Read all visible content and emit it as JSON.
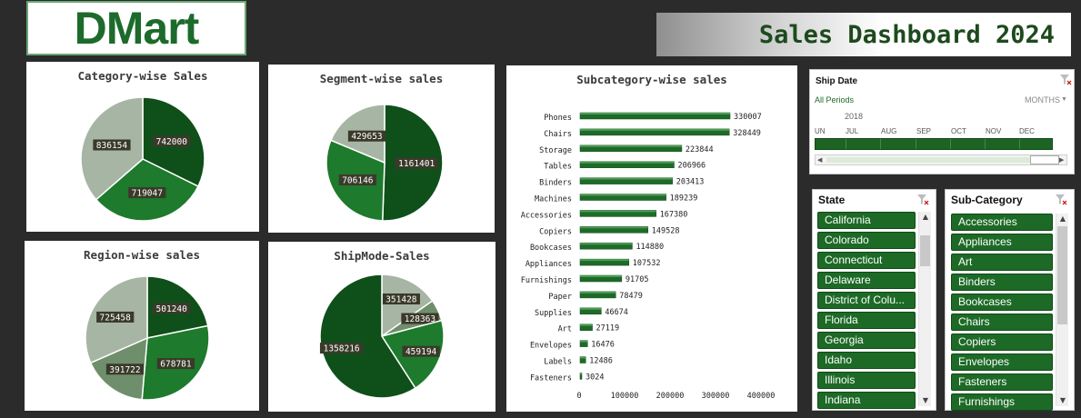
{
  "logo": {
    "text": "DMart"
  },
  "title": "Sales Dashboard 2024",
  "colors": {
    "dark_green": "#0f4f1a",
    "mid_green": "#1e7a2c",
    "light_gray": "#a7b5a4",
    "gray_green": "#6f8f6c",
    "slicer_green": "#1d6a27",
    "timeline_green": "#1c6324"
  },
  "category_chart": {
    "title": "Category-wise Sales",
    "chart_data": {
      "type": "pie",
      "values": [
        742000,
        719047,
        836154
      ]
    }
  },
  "segment_chart": {
    "title": "Segment-wise sales",
    "chart_data": {
      "type": "pie",
      "values": [
        1161401,
        706146,
        429653
      ]
    }
  },
  "region_chart": {
    "title": "Region-wise sales",
    "chart_data": {
      "type": "pie",
      "values": [
        501240,
        678781,
        391722,
        725458
      ]
    }
  },
  "shipmode_chart": {
    "title": "ShipMode-Sales",
    "chart_data": {
      "type": "pie",
      "values": [
        351428,
        128363,
        459194,
        1358216
      ]
    }
  },
  "subcategory_chart": {
    "title": "Subcategory-wise sales",
    "chart_data": {
      "type": "bar",
      "orientation": "horizontal",
      "categories": [
        "Phones",
        "Chairs",
        "Storage",
        "Tables",
        "Binders",
        "Machines",
        "Accessories",
        "Copiers",
        "Bookcases",
        "Appliances",
        "Furnishings",
        "Paper",
        "Supplies",
        "Art",
        "Envelopes",
        "Labels",
        "Fasteners"
      ],
      "values": [
        330007,
        328449,
        223844,
        206966,
        203413,
        189239,
        167380,
        149528,
        114880,
        107532,
        91705,
        78479,
        46674,
        27119,
        16476,
        12486,
        3024
      ],
      "xticks": [
        "0",
        "100000",
        "200000",
        "300000",
        "400000"
      ],
      "xlim": [
        0,
        400000
      ]
    }
  },
  "timeline": {
    "header": "Ship Date",
    "period_label": "All Periods",
    "level_label": "MONTHS",
    "year": "2018",
    "months": [
      "UN",
      "JUL",
      "AUG",
      "SEP",
      "OCT",
      "NOV",
      "DEC"
    ]
  },
  "state_slicer": {
    "header": "State",
    "items": [
      "California",
      "Colorado",
      "Connecticut",
      "Delaware",
      "District of Colu...",
      "Florida",
      "Georgia",
      "Idaho",
      "Illinois",
      "Indiana"
    ]
  },
  "subcategory_slicer": {
    "header": "Sub-Category",
    "items": [
      "Accessories",
      "Appliances",
      "Art",
      "Binders",
      "Bookcases",
      "Chairs",
      "Copiers",
      "Envelopes",
      "Fasteners",
      "Furnishings"
    ]
  }
}
